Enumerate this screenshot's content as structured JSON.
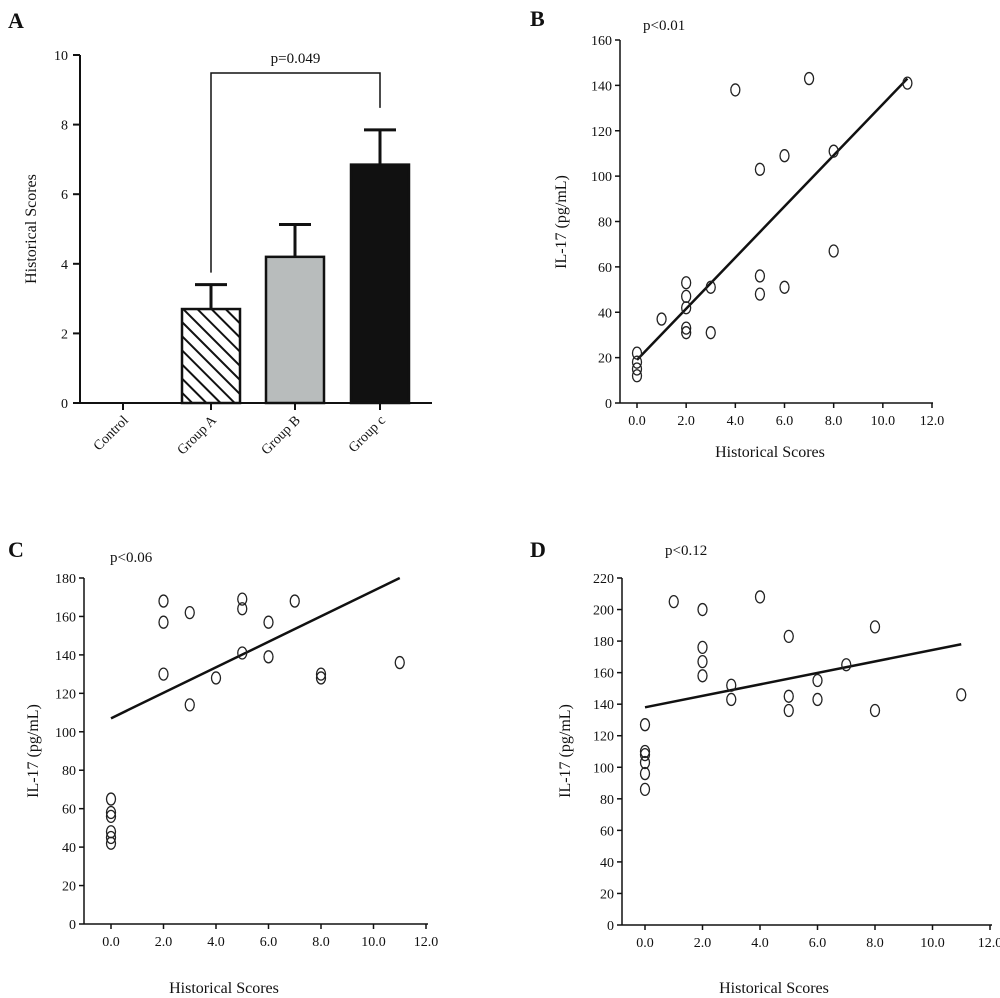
{
  "chart_data": [
    {
      "panel": "A",
      "type": "bar",
      "ylabel": "Historical Scores",
      "xlabel": "",
      "ylim": [
        0,
        10
      ],
      "yticks": [
        "0",
        "2",
        "4",
        "6",
        "8",
        "10"
      ],
      "categories": [
        "Control",
        "Group A",
        "Group B",
        "Group c"
      ],
      "values": [
        0,
        2.7,
        4.2,
        6.85
      ],
      "errors": [
        0,
        0.7,
        0.93,
        1.0
      ],
      "fills": [
        "none",
        "hatch",
        "#b8bcbc",
        "#111111"
      ],
      "annotation": "p=0.049",
      "comparison": [
        "Group A",
        "Group c"
      ]
    },
    {
      "panel": "B",
      "type": "scatter",
      "annotation": "p<0.01",
      "xlabel": "Historical Scores",
      "ylabel": "IL-17 (pg/mL)",
      "xlim": [
        -1,
        12
      ],
      "ylim": [
        0,
        160
      ],
      "xticks": [
        "0.0",
        "2.0",
        "4.0",
        "6.0",
        "8.0",
        "10.0",
        "12.0"
      ],
      "yticks": [
        "0",
        "20",
        "40",
        "60",
        "80",
        "100",
        "120",
        "140",
        "160"
      ],
      "points": [
        [
          0,
          22
        ],
        [
          0,
          18
        ],
        [
          0,
          15
        ],
        [
          0,
          12
        ],
        [
          1,
          37
        ],
        [
          2,
          53
        ],
        [
          2,
          47
        ],
        [
          2,
          42
        ],
        [
          2,
          33
        ],
        [
          2,
          31
        ],
        [
          3,
          51
        ],
        [
          3,
          31
        ],
        [
          4,
          138
        ],
        [
          5,
          103
        ],
        [
          5,
          56
        ],
        [
          5,
          48
        ],
        [
          6,
          109
        ],
        [
          6,
          51
        ],
        [
          7,
          143
        ],
        [
          8,
          111
        ],
        [
          8,
          67
        ],
        [
          11,
          141
        ]
      ],
      "fit_line": [
        [
          0,
          19
        ],
        [
          11,
          143
        ]
      ]
    },
    {
      "panel": "C",
      "type": "scatter",
      "annotation": "p<0.06",
      "xlabel": "Historical Scores",
      "ylabel": "IL-17 (pg/mL)",
      "xlim": [
        -1,
        12
      ],
      "ylim": [
        0,
        180
      ],
      "xticks": [
        "0.0",
        "2.0",
        "4.0",
        "6.0",
        "8.0",
        "10.0",
        "12.0"
      ],
      "yticks": [
        "0",
        "20",
        "40",
        "60",
        "80",
        "100",
        "120",
        "140",
        "160",
        "180"
      ],
      "points": [
        [
          0,
          65
        ],
        [
          0,
          58
        ],
        [
          0,
          56
        ],
        [
          0,
          48
        ],
        [
          0,
          45
        ],
        [
          0,
          42
        ],
        [
          2,
          168
        ],
        [
          2,
          157
        ],
        [
          2,
          130
        ],
        [
          3,
          162
        ],
        [
          3,
          114
        ],
        [
          4,
          128
        ],
        [
          5,
          169
        ],
        [
          5,
          164
        ],
        [
          5,
          141
        ],
        [
          6,
          157
        ],
        [
          6,
          139
        ],
        [
          7,
          168
        ],
        [
          8,
          130
        ],
        [
          8,
          128
        ],
        [
          11,
          136
        ]
      ],
      "fit_line": [
        [
          0,
          107
        ],
        [
          11,
          180
        ]
      ]
    },
    {
      "panel": "D",
      "type": "scatter",
      "annotation": "p<0.12",
      "xlabel": "Historical Scores",
      "ylabel": "IL-17 (pg/mL)",
      "xlim": [
        -1,
        12
      ],
      "ylim": [
        0,
        220
      ],
      "xticks": [
        "0.0",
        "2.0",
        "4.0",
        "6.0",
        "8.0",
        "10.0",
        "12.0"
      ],
      "yticks": [
        "0",
        "20",
        "40",
        "60",
        "80",
        "100",
        "120",
        "140",
        "160",
        "180",
        "200",
        "220"
      ],
      "points": [
        [
          0,
          127
        ],
        [
          0,
          110
        ],
        [
          0,
          108
        ],
        [
          0,
          103
        ],
        [
          0,
          96
        ],
        [
          0,
          86
        ],
        [
          1,
          205
        ],
        [
          2,
          200
        ],
        [
          2,
          176
        ],
        [
          2,
          167
        ],
        [
          2,
          158
        ],
        [
          3,
          152
        ],
        [
          3,
          143
        ],
        [
          4,
          208
        ],
        [
          5,
          183
        ],
        [
          5,
          145
        ],
        [
          5,
          136
        ],
        [
          6,
          155
        ],
        [
          6,
          143
        ],
        [
          7,
          165
        ],
        [
          8,
          189
        ],
        [
          8,
          136
        ],
        [
          11,
          146
        ]
      ],
      "fit_line": [
        [
          0,
          138
        ],
        [
          11,
          178
        ]
      ]
    }
  ]
}
